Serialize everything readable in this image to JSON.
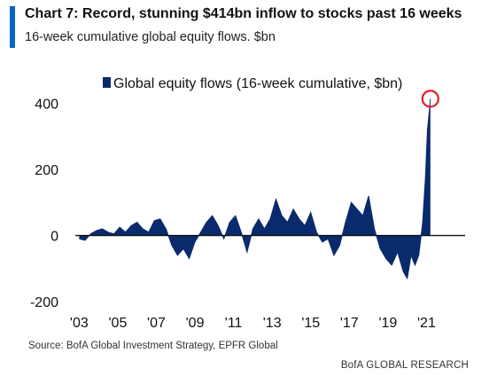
{
  "header": {
    "title": "Chart 7: Record, stunning $414bn inflow to stocks past 16 weeks",
    "subtitle": "16-week cumulative global equity flows. $bn",
    "accent_color": "#0b64c8"
  },
  "footer": {
    "source": "Source:  BofA Global Investment Strategy, EPFR Global",
    "brand": "BofA GLOBAL RESEARCH"
  },
  "chart_data": {
    "type": "area",
    "title": "Chart 7: Record, stunning $414bn inflow to stocks past 16 weeks",
    "subtitle": "16-week cumulative global equity flows. $bn",
    "xlabel": "",
    "ylabel": "",
    "ylim": [
      -200,
      450
    ],
    "xlim": [
      2002.8,
      2023.0
    ],
    "yticks": [
      400,
      200,
      0,
      -200
    ],
    "ytick_labels": [
      "400",
      "200",
      "0",
      "-200"
    ],
    "xticks": [
      2003,
      2005,
      2007,
      2009,
      2011,
      2013,
      2015,
      2017,
      2019,
      2021
    ],
    "xtick_labels": [
      "'03",
      "'05",
      "'07",
      "'09",
      "'11",
      "'13",
      "'15",
      "'17",
      "'19",
      "'21"
    ],
    "grid": false,
    "legend": {
      "placement": "top",
      "entries": [
        "Global equity flows (16-week cumulative, $bn)"
      ]
    },
    "series_color": "#0a2a6e",
    "highlight_color": "#e0202b",
    "highlight": {
      "x": 2021.2,
      "y": 414
    },
    "series": [
      {
        "name": "Global equity flows (16-week cumulative, $bn)",
        "x": [
          2003.0,
          2003.3,
          2003.6,
          2003.9,
          2004.2,
          2004.5,
          2004.8,
          2005.1,
          2005.4,
          2005.7,
          2006.0,
          2006.3,
          2006.6,
          2006.9,
          2007.2,
          2007.5,
          2007.8,
          2008.1,
          2008.4,
          2008.7,
          2009.0,
          2009.3,
          2009.6,
          2009.9,
          2010.2,
          2010.5,
          2010.8,
          2011.1,
          2011.4,
          2011.7,
          2012.0,
          2012.3,
          2012.6,
          2012.9,
          2013.2,
          2013.5,
          2013.8,
          2014.1,
          2014.4,
          2014.7,
          2015.0,
          2015.3,
          2015.6,
          2015.9,
          2016.2,
          2016.5,
          2016.8,
          2017.1,
          2017.4,
          2017.7,
          2018.0,
          2018.3,
          2018.6,
          2018.9,
          2019.2,
          2019.5,
          2019.8,
          2020.0,
          2020.2,
          2020.4,
          2020.6,
          2020.8,
          2020.95,
          2021.05,
          2021.15,
          2021.2
        ],
        "y": [
          -10,
          -15,
          5,
          15,
          20,
          10,
          5,
          25,
          10,
          30,
          40,
          20,
          10,
          45,
          50,
          20,
          -30,
          -60,
          -40,
          -70,
          -20,
          10,
          40,
          60,
          30,
          -10,
          40,
          60,
          10,
          -50,
          20,
          50,
          20,
          50,
          110,
          60,
          40,
          80,
          50,
          30,
          70,
          10,
          -20,
          -10,
          -60,
          -30,
          40,
          100,
          80,
          60,
          120,
          20,
          -40,
          -70,
          -90,
          -50,
          -110,
          -130,
          -60,
          -90,
          -60,
          40,
          180,
          320,
          380,
          414
        ]
      }
    ]
  }
}
